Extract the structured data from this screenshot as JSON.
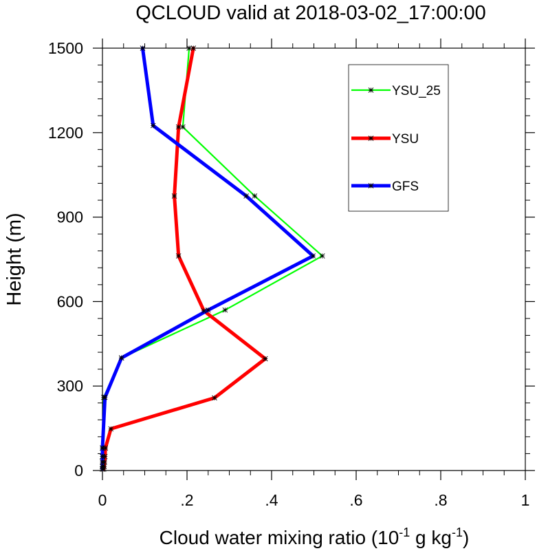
{
  "chart_data": {
    "type": "line",
    "title": "QCLOUD valid at 2018-03-02_17:00:00",
    "xlabel": {
      "main": "Cloud water mixing ratio (10",
      "exp1": "-1",
      "mid": " g kg",
      "exp2": "-1",
      "end": ")"
    },
    "ylabel": "Height (m)",
    "xlim": [
      0,
      1
    ],
    "ylim": [
      0,
      1500
    ],
    "xticks": [
      0,
      0.2,
      0.4,
      0.6,
      0.8,
      1
    ],
    "xtick_labels": [
      "0",
      ".2",
      ".4",
      ".6",
      ".8",
      "1"
    ],
    "yticks": [
      0,
      300,
      600,
      900,
      1200,
      1500
    ],
    "ytick_labels": [
      "0",
      "300",
      "600",
      "900",
      "1200",
      "1500"
    ],
    "grid": false,
    "legend_position": "top-right",
    "series": [
      {
        "name": "YSU_25",
        "color": "#00ff00",
        "width": "thin",
        "x": [
          0.0,
          0.0,
          0.0,
          0.0,
          0.0,
          0.003,
          0.045,
          0.29,
          0.52,
          0.36,
          0.19,
          0.205
        ],
        "y": [
          5,
          15,
          30,
          50,
          80,
          260,
          400,
          570,
          762,
          975,
          1220,
          1500
        ]
      },
      {
        "name": "YSU",
        "color": "#ff0000",
        "width": "thick",
        "x": [
          0.003,
          0.004,
          0.005,
          0.006,
          0.007,
          0.02,
          0.265,
          0.385,
          0.24,
          0.18,
          0.17,
          0.18,
          0.215
        ],
        "y": [
          5,
          15,
          30,
          50,
          80,
          148,
          258,
          397,
          567,
          762,
          975,
          1220,
          1500
        ]
      },
      {
        "name": "GFS",
        "color": "#0000ff",
        "width": "thick",
        "x": [
          0.0,
          0.0,
          0.0,
          0.0,
          0.0,
          0.006,
          0.045,
          0.25,
          0.498,
          0.34,
          0.12,
          0.095
        ],
        "y": [
          5,
          15,
          30,
          50,
          80,
          260,
          400,
          570,
          762,
          975,
          1225,
          1500
        ]
      }
    ]
  }
}
